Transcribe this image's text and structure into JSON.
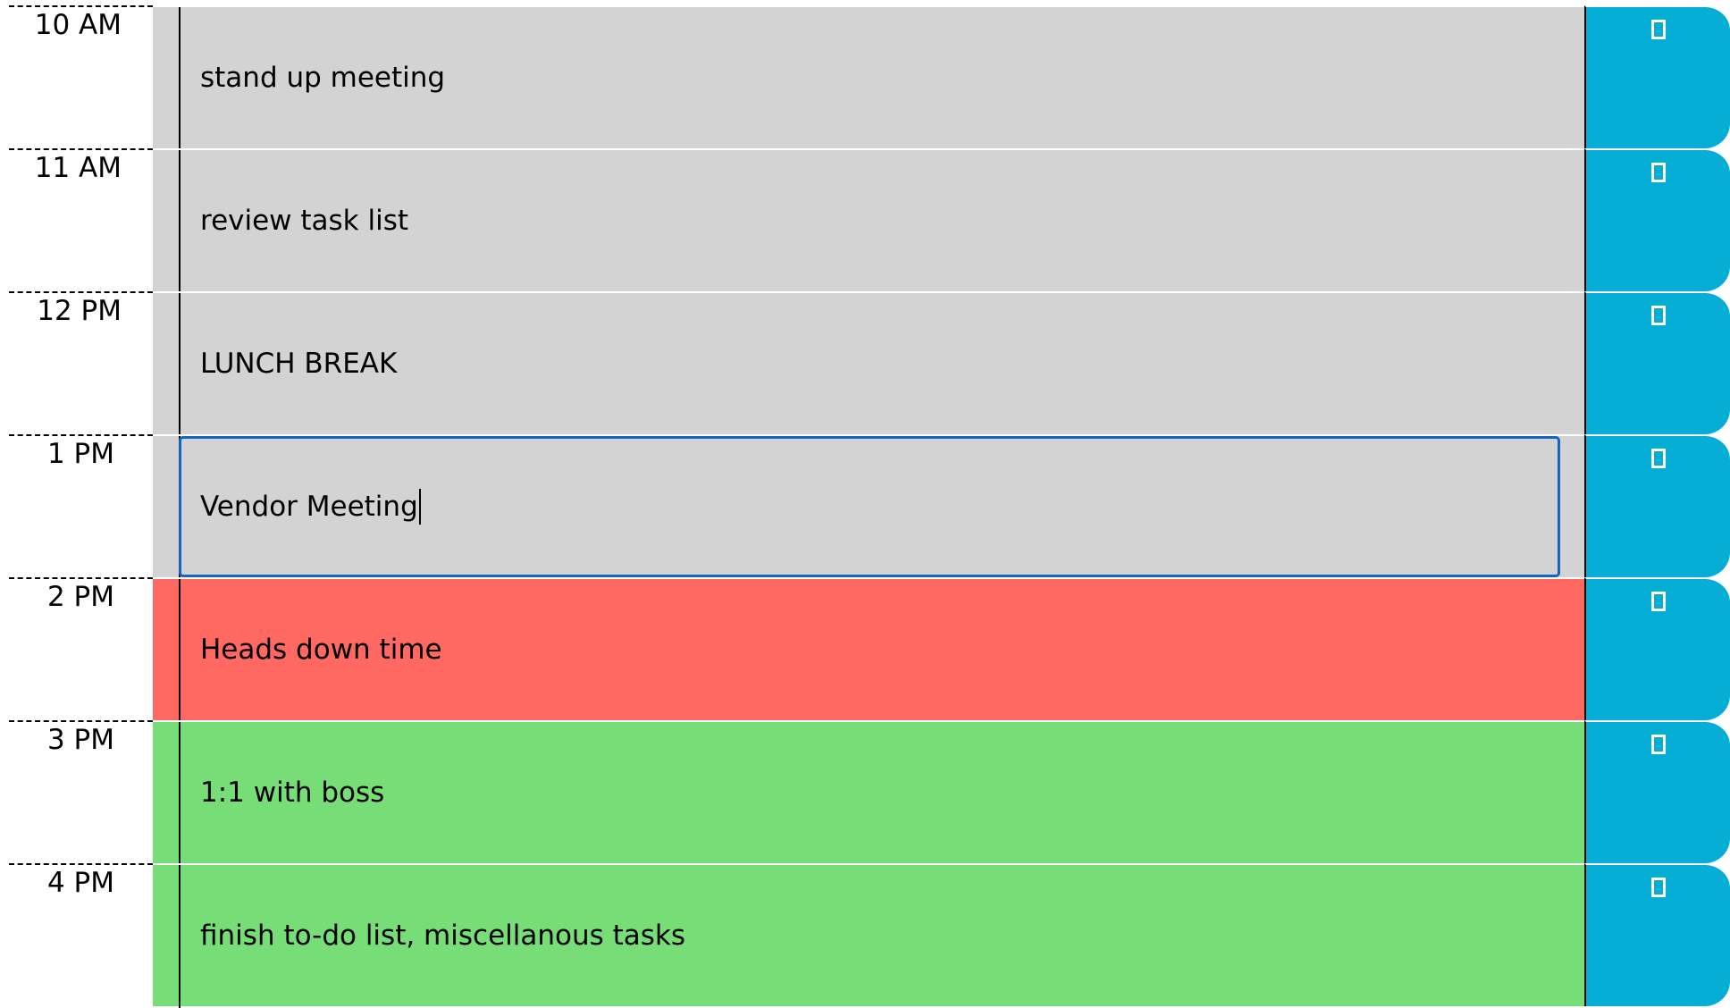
{
  "colors": {
    "past": "#d3d3d3",
    "present": "#ff6961",
    "future": "#77dd77",
    "save_button": "#06aed5",
    "focus_ring": "#1565c0"
  },
  "hours": [
    {
      "label": "10 AM",
      "text": "stand up meeting",
      "state": "past",
      "save_icon": "save-icon"
    },
    {
      "label": "11 AM",
      "text": "review task list",
      "state": "past",
      "save_icon": "save-icon"
    },
    {
      "label": "12 PM",
      "text": "LUNCH BREAK",
      "state": "past",
      "save_icon": "save-icon"
    },
    {
      "label": "1 PM",
      "text": "Vendor Meeting",
      "state": "past",
      "focused": true,
      "save_icon": "save-icon"
    },
    {
      "label": "2 PM",
      "text": "Heads down time",
      "state": "present",
      "save_icon": "save-icon"
    },
    {
      "label": "3 PM",
      "text": "1:1 with boss",
      "state": "future",
      "save_icon": "save-icon"
    },
    {
      "label": "4 PM",
      "text": "finish to-do list, miscellanous tasks",
      "state": "future",
      "save_icon": "save-icon"
    }
  ]
}
